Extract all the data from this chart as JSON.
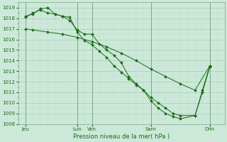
{
  "xlabel": "Pression niveau de la mer( hPa )",
  "ylim": [
    1008,
    1019.5
  ],
  "xlim": [
    0,
    28
  ],
  "yticks": [
    1008,
    1009,
    1010,
    1011,
    1012,
    1013,
    1014,
    1015,
    1016,
    1017,
    1018,
    1019
  ],
  "bg_color": "#cce8d8",
  "line_color": "#1a6b1a",
  "grid_color_major": "#aaccbb",
  "grid_color_minor": "#c0dece",
  "xtick_positions": [
    1,
    8,
    10,
    18,
    26
  ],
  "xtick_labels": [
    "Jeu",
    "Lun",
    "Ven",
    "Sam",
    "Dim"
  ],
  "vline_positions": [
    1,
    8,
    10,
    18,
    26
  ],
  "line1_x": [
    1,
    2,
    4,
    6,
    8,
    10,
    12,
    14,
    16,
    18,
    20,
    22,
    24,
    26
  ],
  "line1_y": [
    1017.0,
    1016.9,
    1016.7,
    1016.5,
    1016.2,
    1015.8,
    1015.3,
    1014.7,
    1014.0,
    1013.2,
    1012.5,
    1011.8,
    1011.2,
    1013.5
  ],
  "line2_x": [
    1,
    2,
    3,
    4,
    5,
    6,
    7,
    8,
    9,
    10,
    11,
    12,
    13,
    14,
    15,
    16,
    17,
    18,
    19,
    20,
    21,
    22,
    24,
    25,
    26
  ],
  "line2_y": [
    1018.1,
    1018.5,
    1018.8,
    1018.5,
    1018.4,
    1018.2,
    1018.1,
    1016.7,
    1015.9,
    1015.5,
    1014.9,
    1014.3,
    1013.5,
    1012.9,
    1012.3,
    1011.7,
    1011.2,
    1010.2,
    1009.5,
    1009.0,
    1008.7,
    1008.5,
    1008.8,
    1011.2,
    1013.5
  ],
  "line3_x": [
    1,
    2,
    3,
    4,
    5,
    6,
    7,
    8,
    9,
    10,
    11,
    12,
    13,
    14,
    15,
    16,
    17,
    18,
    19,
    20,
    21,
    22,
    24,
    25,
    26
  ],
  "line3_y": [
    1018.2,
    1018.4,
    1018.9,
    1019.0,
    1018.4,
    1018.2,
    1017.8,
    1016.9,
    1016.5,
    1016.5,
    1015.6,
    1015.0,
    1014.5,
    1013.8,
    1012.5,
    1011.8,
    1011.2,
    1010.5,
    1010.0,
    1009.5,
    1009.0,
    1008.8,
    1008.8,
    1011.0,
    1013.4
  ]
}
